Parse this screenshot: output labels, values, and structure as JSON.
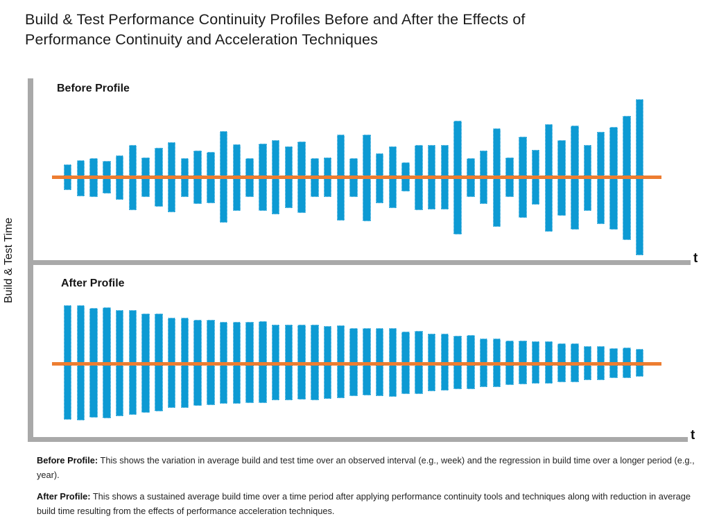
{
  "title_lines": [
    "Build & Test Performance Continuity Profiles Before and After the Effects of",
    "Performance Continuity and Acceleration Techniques"
  ],
  "y_axis_label": "Build & Test Time",
  "colors": {
    "bar": "#0d9ad3",
    "bar_border": "#bfe4f5",
    "average_line": "#ed7d31",
    "axis": "#a9a9a9",
    "text": "#161616"
  },
  "chart_data": [
    {
      "type": "bar",
      "title": "Before Profile",
      "xlabel": "t",
      "ylabel": "Build & Test Time",
      "grid": false,
      "legend": "none",
      "axes_numeric_labels": false,
      "average_line": "flat horizontal line through bar centers (orange)",
      "units": "relative deviation of build & test time above/below the average line (unlabeled axes, values estimated from plot in px)",
      "bar_count": 45,
      "deviations_up_down": [
        [
          19,
          18
        ],
        [
          25,
          27
        ],
        [
          28,
          28
        ],
        [
          24,
          23
        ],
        [
          32,
          32
        ],
        [
          47,
          47
        ],
        [
          29,
          28
        ],
        [
          43,
          42
        ],
        [
          51,
          50
        ],
        [
          28,
          28
        ],
        [
          39,
          38
        ],
        [
          37,
          37
        ],
        [
          67,
          65
        ],
        [
          48,
          48
        ],
        [
          28,
          28
        ],
        [
          49,
          48
        ],
        [
          54,
          53
        ],
        [
          45,
          44
        ],
        [
          52,
          51
        ],
        [
          28,
          28
        ],
        [
          29,
          28
        ],
        [
          62,
          62
        ],
        [
          28,
          28
        ],
        [
          62,
          63
        ],
        [
          35,
          37
        ],
        [
          45,
          44
        ],
        [
          22,
          20
        ],
        [
          47,
          47
        ],
        [
          47,
          46
        ],
        [
          47,
          46
        ],
        [
          82,
          82
        ],
        [
          28,
          28
        ],
        [
          39,
          38
        ],
        [
          71,
          71
        ],
        [
          29,
          28
        ],
        [
          59,
          58
        ],
        [
          40,
          39
        ],
        [
          77,
          78
        ],
        [
          54,
          55
        ],
        [
          75,
          75
        ],
        [
          47,
          48
        ],
        [
          66,
          67
        ],
        [
          73,
          75
        ],
        [
          89,
          90
        ],
        [
          113,
          112
        ]
      ]
    },
    {
      "type": "bar",
      "title": "After Profile",
      "xlabel": "t",
      "ylabel": "Build & Test Time",
      "grid": false,
      "legend": "none",
      "axes_numeric_labels": false,
      "average_line": "flat horizontal line through bar centers (orange)",
      "units": "relative deviation of build & test time above/below the average line (unlabeled axes, values estimated from plot in px)",
      "bar_count": 45,
      "deviations_up_down": [
        [
          85,
          80
        ],
        [
          85,
          81
        ],
        [
          81,
          77
        ],
        [
          82,
          78
        ],
        [
          78,
          75
        ],
        [
          78,
          73
        ],
        [
          73,
          70
        ],
        [
          73,
          68
        ],
        [
          67,
          63
        ],
        [
          67,
          63
        ],
        [
          64,
          60
        ],
        [
          64,
          59
        ],
        [
          61,
          57
        ],
        [
          61,
          57
        ],
        [
          61,
          56
        ],
        [
          62,
          56
        ],
        [
          57,
          52
        ],
        [
          57,
          52
        ],
        [
          57,
          51
        ],
        [
          57,
          52
        ],
        [
          55,
          50
        ],
        [
          56,
          49
        ],
        [
          52,
          46
        ],
        [
          52,
          45
        ],
        [
          52,
          46
        ],
        [
          52,
          47
        ],
        [
          47,
          43
        ],
        [
          48,
          43
        ],
        [
          44,
          39
        ],
        [
          44,
          38
        ],
        [
          41,
          36
        ],
        [
          42,
          36
        ],
        [
          37,
          33
        ],
        [
          37,
          33
        ],
        [
          34,
          30
        ],
        [
          34,
          29
        ],
        [
          33,
          28
        ],
        [
          33,
          28
        ],
        [
          30,
          26
        ],
        [
          30,
          26
        ],
        [
          26,
          23
        ],
        [
          26,
          23
        ],
        [
          23,
          20
        ],
        [
          24,
          20
        ],
        [
          22,
          18
        ]
      ]
    }
  ],
  "captions": [
    {
      "lead": "Before Profile:",
      "text": " This shows the variation in average build and test time over an observed interval (e.g., week) and the regression in build time over a longer period (e.g., year)."
    },
    {
      "lead": "After Profile:",
      "text": " This shows a sustained average build time over a time period after applying performance continuity tools and techniques along with reduction in average build time resulting from the effects of performance acceleration techniques."
    }
  ]
}
